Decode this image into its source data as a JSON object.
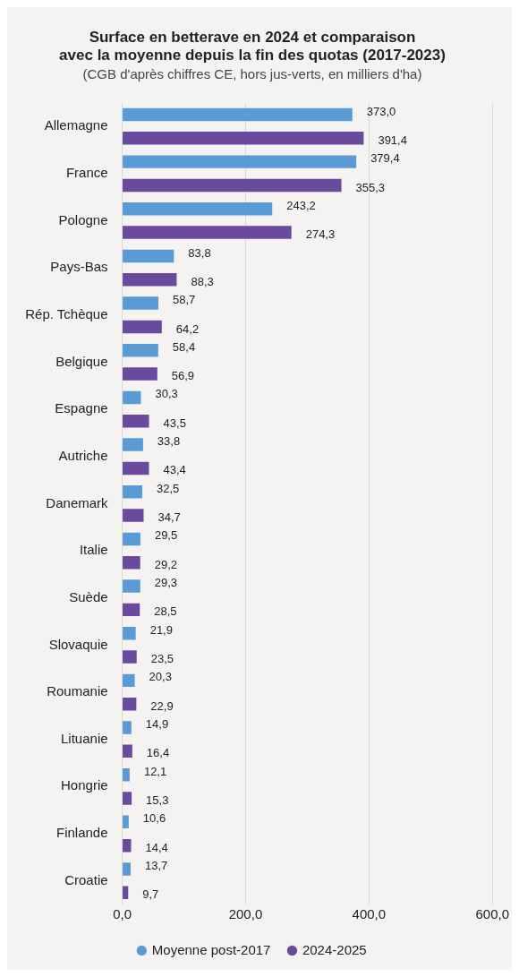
{
  "chart_data": {
    "type": "bar",
    "orientation": "horizontal",
    "title": "Surface en betterave en 2024 et comparaison avec la moyenne depuis la fin des quotas (2017-2023)",
    "subtitle": "(CGB d'après chiffres CE, hors jus-verts, en milliers d'ha)",
    "categories": [
      "Allemagne",
      "France",
      "Pologne",
      "Pays-Bas",
      "Rép. Tchèque",
      "Belgique",
      "Espagne",
      "Autriche",
      "Danemark",
      "Italie",
      "Suède",
      "Slovaquie",
      "Roumanie",
      "Lituanie",
      "Hongrie",
      "Finlande",
      "Croatie"
    ],
    "series": [
      {
        "name": "Moyenne post-2017",
        "color": "#5b9bd5",
        "values": [
          373.0,
          379.4,
          243.2,
          83.8,
          58.7,
          58.4,
          30.3,
          33.8,
          32.5,
          29.5,
          29.3,
          21.9,
          20.3,
          14.9,
          12.1,
          10.6,
          13.7
        ],
        "value_labels": [
          "373,0",
          "379,4",
          "243,2",
          "83,8",
          "58,7",
          "58,4",
          "30,3",
          "33,8",
          "32,5",
          "29,5",
          "29,3",
          "21,9",
          "20,3",
          "14,9",
          "12,1",
          "10,6",
          "13,7"
        ]
      },
      {
        "name": "2024-2025",
        "color": "#6a4a9c",
        "values": [
          391.4,
          355.3,
          274.3,
          88.3,
          64.2,
          56.9,
          43.5,
          43.4,
          34.7,
          29.2,
          28.5,
          23.5,
          22.9,
          16.4,
          15.3,
          14.4,
          9.7
        ],
        "value_labels": [
          "391,4",
          "355,3",
          "274,3",
          "88,3",
          "64,2",
          "56,9",
          "43,5",
          "43,4",
          "34,7",
          "29,2",
          "28,5",
          "23,5",
          "22,9",
          "16,4",
          "15,3",
          "14,4",
          "9,7"
        ]
      }
    ],
    "xlim": [
      0,
      600
    ],
    "xticks": [
      {
        "value": 0,
        "label": "0,0"
      },
      {
        "value": 200,
        "label": "200,0"
      },
      {
        "value": 400,
        "label": "400,0"
      },
      {
        "value": 600,
        "label": "600,0"
      }
    ],
    "grid": "x",
    "legend": "bottom",
    "marker": "circle"
  }
}
